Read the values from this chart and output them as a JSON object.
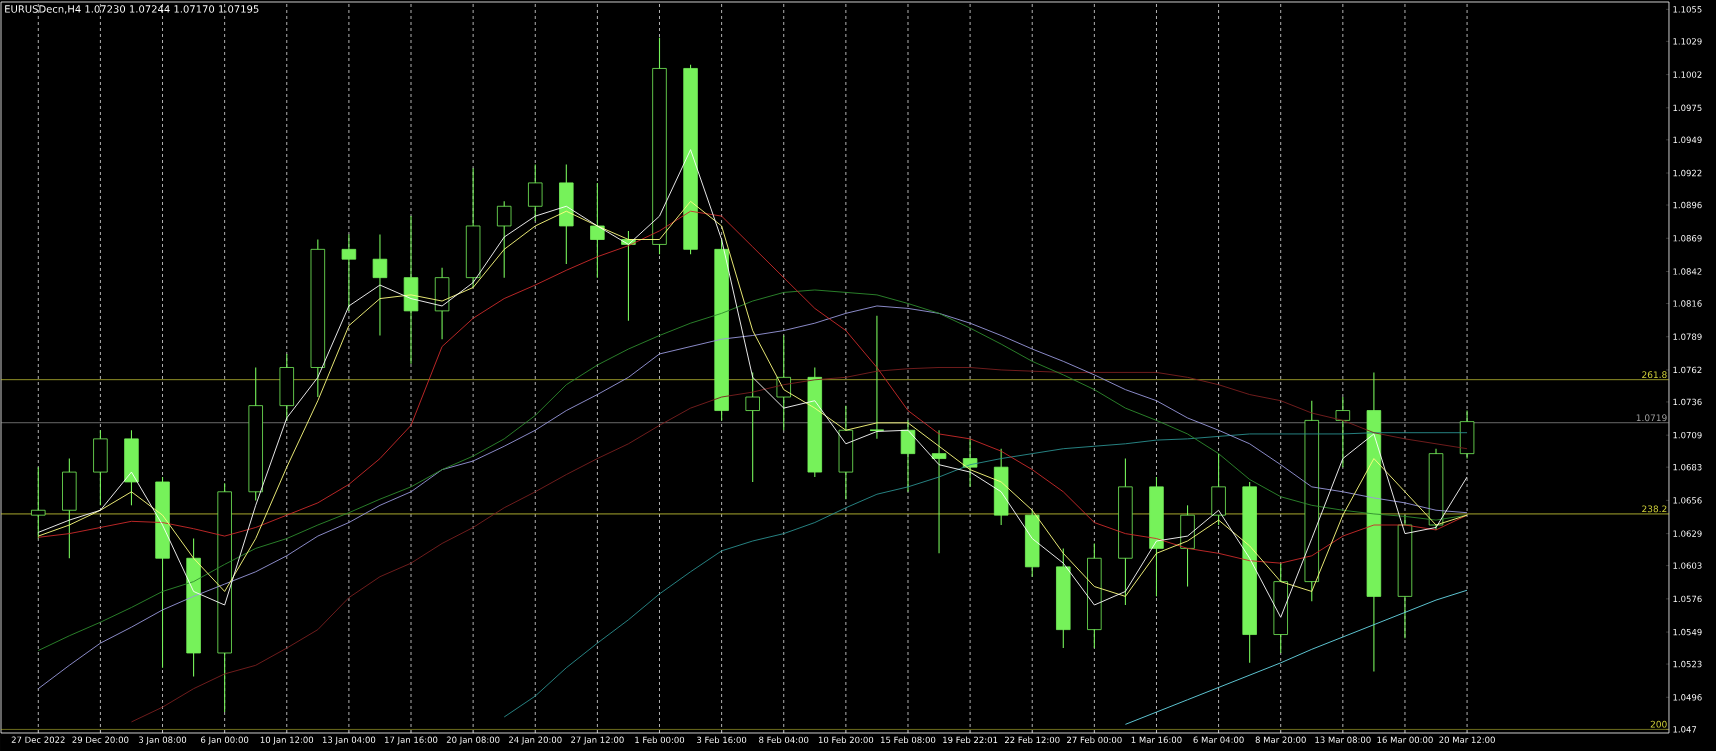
{
  "chart_data": {
    "type": "candlestick",
    "title": "EURUSDecn,H4  1.07230 1.07244 1.07170 1.07195",
    "categories": [
      "27 Dec 2022",
      null,
      "29 Dec 20:00",
      null,
      "3 Jan 08:00",
      null,
      "6 Jan 00:00",
      null,
      "10 Jan 12:00",
      null,
      "13 Jan 04:00",
      null,
      "17 Jan 16:00",
      null,
      "20 Jan 08:00",
      null,
      "24 Jan 20:00",
      null,
      "27 Jan 12:00",
      null,
      "1 Feb 00:00",
      null,
      "3 Feb 16:00",
      null,
      "8 Feb 04:00",
      null,
      "10 Feb 20:00",
      null,
      "15 Feb 08:00",
      null,
      "19 Feb 22:01",
      null,
      "22 Feb 12:00",
      null,
      "27 Feb 00:00",
      null,
      "1 Mar 16:00",
      null,
      "6 Mar 04:00",
      null,
      "8 Mar 20:00",
      null,
      "13 Mar 08:00",
      null,
      "16 Mar 00:00",
      null,
      "20 Mar 12:00",
      null,
      null,
      null,
      null,
      null,
      null
    ],
    "color": "#76f25a",
    "ohlc": [
      [
        1.0644,
        1.0683,
        1.0625,
        1.0648
      ],
      [
        1.0648,
        1.069,
        1.0609,
        1.0679
      ],
      [
        1.0679,
        1.0713,
        1.0652,
        1.0706
      ],
      [
        1.0706,
        1.0713,
        1.0652,
        1.0671
      ],
      [
        1.0671,
        1.0675,
        1.052,
        1.0609
      ],
      [
        1.0609,
        1.0625,
        1.0513,
        1.0532
      ],
      [
        1.0532,
        1.067,
        1.0484,
        1.0663
      ],
      [
        1.0663,
        1.0764,
        1.0656,
        1.0733
      ],
      [
        1.0733,
        1.0775,
        1.0721,
        1.0764
      ],
      [
        1.0764,
        1.0868,
        1.074,
        1.086
      ],
      [
        1.086,
        1.0872,
        1.081,
        1.0852
      ],
      [
        1.0852,
        1.0872,
        1.079,
        1.0837
      ],
      [
        1.0837,
        1.0887,
        1.0767,
        1.081
      ],
      [
        1.081,
        1.0845,
        1.0787,
        1.0837
      ],
      [
        1.0837,
        1.0926,
        1.0829,
        1.0879
      ],
      [
        1.0879,
        1.0899,
        1.0837,
        1.0895
      ],
      [
        1.0895,
        1.0929,
        1.0883,
        1.0914
      ],
      [
        1.0914,
        1.0929,
        1.0848,
        1.0879
      ],
      [
        1.0879,
        1.0914,
        1.0837,
        1.0868
      ],
      [
        1.0868,
        1.0875,
        1.0802,
        1.0864
      ],
      [
        1.0864,
        1.1032,
        1.0856,
        1.1007
      ],
      [
        1.1007,
        1.101,
        1.0856,
        1.086
      ],
      [
        1.086,
        1.0868,
        1.0721,
        1.0729
      ],
      [
        1.0729,
        1.076,
        1.0671,
        1.074
      ],
      [
        1.074,
        1.079,
        1.0713,
        1.0756
      ],
      [
        1.0756,
        1.0764,
        1.0675,
        1.0679
      ],
      [
        1.0679,
        1.0733,
        1.0657,
        1.0713
      ],
      [
        1.0713,
        1.0806,
        1.0706,
        1.0713
      ],
      [
        1.0713,
        1.0721,
        1.0663,
        1.0694
      ],
      [
        1.0694,
        1.0713,
        1.0613,
        1.069
      ],
      [
        1.069,
        1.0706,
        1.0667,
        1.0683
      ],
      [
        1.0683,
        1.0698,
        1.0636,
        1.0644
      ],
      [
        1.0644,
        1.0648,
        1.0594,
        1.0602
      ],
      [
        1.0602,
        1.0617,
        1.0536,
        1.0551
      ],
      [
        1.0551,
        1.0621,
        1.0536,
        1.0609
      ],
      [
        1.0609,
        1.069,
        1.0571,
        1.0667
      ],
      [
        1.0667,
        1.0675,
        1.0578,
        1.0617
      ],
      [
        1.0617,
        1.0652,
        1.0586,
        1.0644
      ],
      [
        1.0644,
        1.0694,
        1.0636,
        1.0667
      ],
      [
        1.0667,
        1.0671,
        1.0524,
        1.0547
      ],
      [
        1.0547,
        1.0605,
        1.0532,
        1.059
      ],
      [
        1.059,
        1.0737,
        1.0574,
        1.0721
      ],
      [
        1.0721,
        1.074,
        1.0683,
        1.0729
      ],
      [
        1.0729,
        1.076,
        1.0517,
        1.0578
      ],
      [
        1.0578,
        1.0644,
        1.0544,
        1.0636
      ],
      [
        1.0636,
        1.0698,
        1.0632,
        1.0694
      ],
      [
        1.0694,
        1.0729,
        1.069,
        1.072
      ],
      null,
      null,
      null,
      null,
      null,
      null
    ],
    "series": [
      {
        "type": "line",
        "color": "#2a8f8f",
        "values": [
          null,
          null,
          null,
          null,
          null,
          null,
          null,
          null,
          null,
          null,
          null,
          null,
          null,
          null,
          null,
          1.048,
          1.0497,
          1.052,
          1.054,
          1.0559,
          1.058,
          1.0598,
          1.0615,
          1.0623,
          1.0629,
          1.0638,
          1.065,
          1.0661,
          1.0667,
          1.0675,
          1.0685,
          1.069,
          1.0694,
          1.0698,
          1.07,
          1.0702,
          1.0705,
          1.0706,
          1.0708,
          1.071,
          1.071,
          1.071,
          1.071,
          1.0711,
          1.0711,
          1.0711,
          1.0711,
          null,
          null,
          null,
          null,
          null,
          null
        ]
      },
      {
        "type": "line",
        "color": "#7a1f1f",
        "values": [
          null,
          null,
          null,
          1.0476,
          1.0488,
          1.0503,
          1.0515,
          1.0522,
          1.0536,
          1.0551,
          1.0577,
          1.0594,
          1.0605,
          1.0621,
          1.0634,
          1.065,
          1.0663,
          1.0677,
          1.069,
          1.0702,
          1.0717,
          1.0731,
          1.074,
          1.0744,
          1.075,
          1.0754,
          1.0756,
          1.0761,
          1.0763,
          1.0764,
          1.0764,
          1.0762,
          1.0761,
          1.076,
          1.076,
          1.076,
          1.076,
          1.0756,
          1.075,
          1.0742,
          1.0737,
          1.0727,
          1.0721,
          1.0711,
          1.0706,
          1.0702,
          1.0698,
          null,
          null,
          null,
          null,
          null,
          null
        ]
      },
      {
        "type": "line",
        "color": "#9999dd",
        "values": [
          1.0503,
          1.0522,
          1.054,
          1.0553,
          1.0567,
          1.0578,
          1.0588,
          1.0598,
          1.0611,
          1.0627,
          1.0638,
          1.0652,
          1.0663,
          1.0681,
          1.0688,
          1.07,
          1.0713,
          1.0729,
          1.0742,
          1.0756,
          1.0775,
          1.0781,
          1.0787,
          1.079,
          1.0794,
          1.08,
          1.0808,
          1.0814,
          1.0812,
          1.0808,
          1.08,
          1.079,
          1.0779,
          1.0769,
          1.0758,
          1.0746,
          1.0737,
          1.0723,
          1.0713,
          1.0702,
          1.0685,
          1.0667,
          1.0663,
          1.0658,
          1.0654,
          1.0648,
          1.0646,
          null,
          null,
          null,
          null,
          null,
          null
        ]
      },
      {
        "type": "line",
        "color": "#2e8b2e",
        "values": [
          1.0534,
          1.0546,
          1.0557,
          1.0569,
          1.0582,
          1.059,
          1.0604,
          1.0617,
          1.0625,
          1.0636,
          1.0646,
          1.0657,
          1.0667,
          1.0681,
          1.0692,
          1.0706,
          1.0725,
          1.075,
          1.0766,
          1.0779,
          1.079,
          1.08,
          1.0808,
          1.0818,
          1.0825,
          1.0827,
          1.0825,
          1.0823,
          1.0816,
          1.0808,
          1.0796,
          1.0783,
          1.0769,
          1.0758,
          1.0746,
          1.0731,
          1.0721,
          1.071,
          1.0694,
          1.0673,
          1.0659,
          1.0652,
          1.0648,
          1.0645,
          1.0643,
          1.064,
          1.0644,
          null,
          null,
          null,
          null,
          null,
          null
        ]
      },
      {
        "type": "line",
        "color": "#cc2a2a",
        "values": [
          1.0626,
          1.0629,
          1.0634,
          1.0639,
          1.0638,
          1.0633,
          1.0627,
          1.0634,
          1.0644,
          1.0654,
          1.0669,
          1.069,
          1.0717,
          1.0781,
          1.0804,
          1.082,
          1.0831,
          1.0843,
          1.0854,
          1.0863,
          1.0875,
          1.0891,
          1.0887,
          1.0862,
          1.0837,
          1.0812,
          1.0794,
          1.0764,
          1.0729,
          1.071,
          1.0706,
          1.0696,
          1.0681,
          1.0663,
          1.0638,
          1.0629,
          1.0625,
          1.0617,
          1.0613,
          1.0607,
          1.0605,
          1.0611,
          1.0627,
          1.0636,
          1.0636,
          1.0632,
          1.0644,
          null,
          null,
          null,
          null,
          null,
          null
        ]
      },
      {
        "type": "line",
        "color": "#ffff80",
        "values": [
          1.0627,
          1.0636,
          1.0648,
          1.0663,
          1.0644,
          1.0609,
          1.0582,
          1.0625,
          1.0683,
          1.0737,
          1.0798,
          1.082,
          1.0823,
          1.0818,
          1.0829,
          1.086,
          1.0879,
          1.0891,
          1.0879,
          1.0868,
          1.0868,
          1.0899,
          1.0879,
          1.0794,
          1.0746,
          1.0731,
          1.0713,
          1.0719,
          1.0719,
          1.07,
          1.0681,
          1.0671,
          1.0648,
          1.0613,
          1.0586,
          1.0578,
          1.0613,
          1.0623,
          1.064,
          1.0619,
          1.059,
          1.0582,
          1.0644,
          1.069,
          1.0663,
          1.0636,
          1.0644,
          null,
          null,
          null,
          null,
          null,
          null
        ]
      },
      {
        "type": "line",
        "color": "#ffffff",
        "values": [
          1.063,
          1.064,
          1.0648,
          1.0679,
          1.0636,
          1.0582,
          1.0571,
          1.0652,
          1.0723,
          1.0756,
          1.0814,
          1.0831,
          1.082,
          1.0814,
          1.0833,
          1.087,
          1.0887,
          1.0895,
          1.0879,
          1.0864,
          1.0887,
          1.0941,
          1.0868,
          1.0756,
          1.0731,
          1.0737,
          1.0702,
          1.0712,
          1.0713,
          1.0685,
          1.0679,
          1.0663,
          1.0625,
          1.0605,
          1.0571,
          1.0582,
          1.0623,
          1.0627,
          1.0648,
          1.0609,
          1.0561,
          1.0625,
          1.069,
          1.071,
          1.0629,
          1.0634,
          1.0675,
          null,
          null,
          null,
          null,
          null,
          null
        ]
      },
      {
        "type": "line",
        "color": "#66d9e8",
        "values": [
          null,
          null,
          null,
          null,
          null,
          null,
          null,
          null,
          null,
          null,
          null,
          null,
          null,
          null,
          null,
          null,
          null,
          null,
          null,
          null,
          null,
          null,
          null,
          null,
          null,
          null,
          null,
          null,
          null,
          null,
          null,
          null,
          null,
          null,
          null,
          1.0474,
          1.0484,
          1.0494,
          1.0504,
          1.0514,
          1.0524,
          1.0535,
          1.0545,
          1.0555,
          1.0565,
          1.0575,
          1.0583,
          null,
          null,
          null,
          null,
          null,
          null
        ]
      }
    ],
    "ylim": [
      1.0467,
      1.1061
    ],
    "yticks": [
      1.047,
      1.0496,
      1.0523,
      1.0549,
      1.0576,
      1.0603,
      1.0629,
      1.0656,
      1.0683,
      1.0709,
      1.0736,
      1.0762,
      1.0789,
      1.0816,
      1.0842,
      1.0869,
      1.0896,
      1.0922,
      1.0949,
      1.0975,
      1.1002,
      1.1029,
      1.1055
    ],
    "grid": "x",
    "ref_lines": [
      {
        "axis": "y",
        "value": 1.0754,
        "color": "#d4d43a"
      },
      {
        "axis": "y",
        "value": 1.0719,
        "label": "1.0719",
        "color": "#a0a0a0"
      },
      {
        "axis": "y",
        "value": 1.0645,
        "color": "#d4d43a"
      },
      {
        "axis": "y",
        "value": 1.047,
        "color": "#d4d43a"
      }
    ],
    "annotations": [
      {
        "text": "261.8",
        "y": 1.0754
      },
      {
        "text": "238.2",
        "y": 1.0645
      },
      {
        "text": "200",
        "y": 1.047
      }
    ]
  }
}
